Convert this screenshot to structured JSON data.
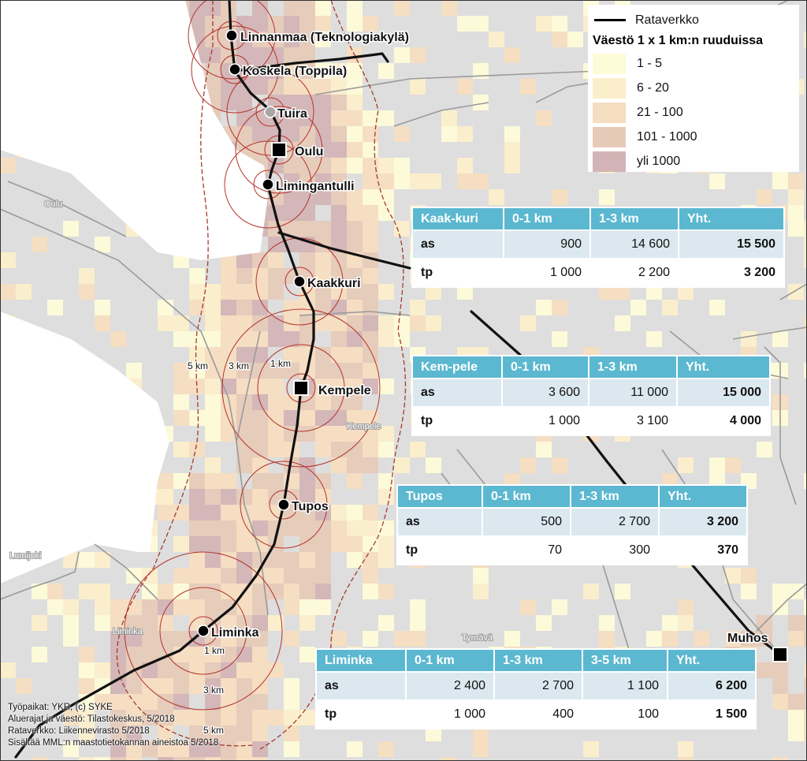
{
  "legend": {
    "line_label": "Rataverkko",
    "title": "Väestö 1 x 1 km:n ruuduissa",
    "classes": [
      {
        "label": "1 - 5",
        "color": "#fdfbd8"
      },
      {
        "label": "6 - 20",
        "color": "#fbeecb"
      },
      {
        "label": "21 - 100",
        "color": "#f5ddc0"
      },
      {
        "label": "101 - 1000",
        "color": "#e6cab8"
      },
      {
        "label": "yli 1000",
        "color": "#d3b4b6"
      }
    ]
  },
  "stations": [
    {
      "name": "Linnanmaa (Teknologiakylä)",
      "kind": "dot"
    },
    {
      "name": "Koskela  (Toppila)",
      "kind": "dot"
    },
    {
      "name": "Tuira",
      "kind": "grey-dot"
    },
    {
      "name": "Oulu",
      "kind": "square"
    },
    {
      "name": "Limingantulli",
      "kind": "dot"
    },
    {
      "name": "Kaakkuri",
      "kind": "dot"
    },
    {
      "name": "Kempele",
      "kind": "square"
    },
    {
      "name": "Tupos",
      "kind": "dot"
    },
    {
      "name": "Liminka",
      "kind": "dot"
    },
    {
      "name": "Muhos",
      "kind": "square"
    }
  ],
  "municipalities": [
    "Oulu",
    "Kempele",
    "Lumijoki",
    "Liminka",
    "Tyrnävä",
    "Muhos"
  ],
  "rings_kempele": [
    "5 km",
    "3 km",
    "1 km"
  ],
  "rings_liminka": [
    "1 km",
    "3 km",
    "5 km"
  ],
  "tables": [
    {
      "station": "Kaak-kuri",
      "cols": [
        "0-1 km",
        "1-3 km",
        "Yht."
      ],
      "rows": [
        {
          "label": "as",
          "values": [
            "900",
            "14 600",
            "15 500"
          ]
        },
        {
          "label": "tp",
          "values": [
            "1 000",
            "2 200",
            "3 200"
          ]
        }
      ]
    },
    {
      "station": "Kem-pele",
      "cols": [
        "0-1 km",
        "1-3 km",
        "Yht."
      ],
      "rows": [
        {
          "label": "as",
          "values": [
            "3 600",
            "11 000",
            "15 000"
          ]
        },
        {
          "label": "tp",
          "values": [
            "1 000",
            "3 100",
            "4 000"
          ]
        }
      ]
    },
    {
      "station": "Tupos",
      "cols": [
        "0-1 km",
        "1-3 km",
        "Yht."
      ],
      "rows": [
        {
          "label": "as",
          "values": [
            "500",
            "2 700",
            "3 200"
          ]
        },
        {
          "label": "tp",
          "values": [
            "70",
            "300",
            "370"
          ]
        }
      ]
    },
    {
      "station": "Liminka",
      "cols": [
        "0-1 km",
        "1-3 km",
        "3-5 km",
        "Yht."
      ],
      "rows": [
        {
          "label": "as",
          "values": [
            "2 400",
            "2 700",
            "1 100",
            "6 200"
          ]
        },
        {
          "label": "tp",
          "values": [
            "1 000",
            "400",
            "100",
            "1 500"
          ]
        }
      ]
    }
  ],
  "credits": [
    "Työpaikat: YKR, (c) SYKE",
    "Aluerajat ja väestö: Tilastokeskus, 5/2018",
    "Rataverkko: Liikennevirasto 5/2018",
    "Sisältää MML:n maastotietokannan aineistoa 5/2018"
  ]
}
